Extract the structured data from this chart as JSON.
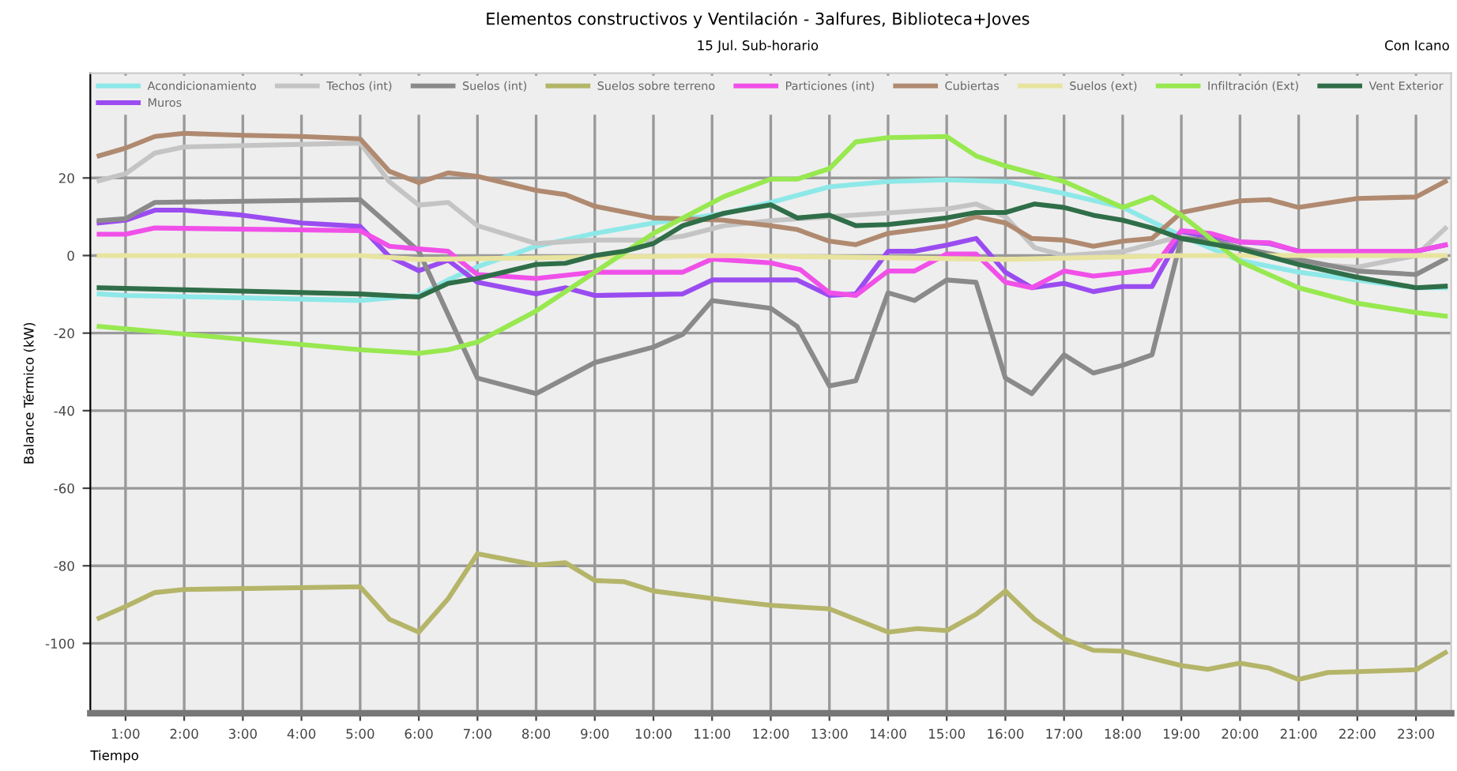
{
  "chart_data": {
    "type": "line",
    "title": "Elementos constructivos y Ventilación - 3alfures, Biblioteca+Joves",
    "subtitle": "15 Jul. Sub-horario",
    "annotations": [
      "Con Icano"
    ],
    "xlabel": "Tiempo",
    "ylabel": "Balance Térmico (kW)",
    "xlim": [
      0.4,
      23.6
    ],
    "xticks": [
      {
        "value": 1,
        "label": "1:00"
      },
      {
        "value": 2,
        "label": "2:00"
      },
      {
        "value": 3,
        "label": "3:00"
      },
      {
        "value": 4,
        "label": "4:00"
      },
      {
        "value": 5,
        "label": "5:00"
      },
      {
        "value": 6,
        "label": "6:00"
      },
      {
        "value": 7,
        "label": "7:00"
      },
      {
        "value": 8,
        "label": "8:00"
      },
      {
        "value": 9,
        "label": "9:00"
      },
      {
        "value": 10,
        "label": "10:00"
      },
      {
        "value": 11,
        "label": "11:00"
      },
      {
        "value": 12,
        "label": "12:00"
      },
      {
        "value": 13,
        "label": "13:00"
      },
      {
        "value": 14,
        "label": "14:00"
      },
      {
        "value": 15,
        "label": "15:00"
      },
      {
        "value": 16,
        "label": "16:00"
      },
      {
        "value": 17,
        "label": "17:00"
      },
      {
        "value": 18,
        "label": "18:00"
      },
      {
        "value": 19,
        "label": "19:00"
      },
      {
        "value": 20,
        "label": "20:00"
      },
      {
        "value": 21,
        "label": "21:00"
      },
      {
        "value": 22,
        "label": "22:00"
      },
      {
        "value": 23,
        "label": "23:00"
      }
    ],
    "ylim": [
      -118,
      47
    ],
    "yticks": [
      20,
      0,
      -20,
      -40,
      -60,
      -80,
      -100
    ],
    "grid": true,
    "legend": "top",
    "marker": "none",
    "line_style": "solid",
    "series": [
      {
        "name": "Acondicionamiento",
        "color": "#8ee8e8",
        "x": [
          0.55,
          1,
          3,
          5,
          6,
          6.5,
          7,
          8,
          9,
          10,
          11.2,
          12,
          13,
          14,
          15,
          16,
          17,
          18,
          19,
          20,
          21,
          22,
          23,
          23.5
        ],
        "values": [
          -9.9,
          -10.3,
          -10.9,
          -11.6,
          -10.3,
          -6.3,
          -2.9,
          2.4,
          5.7,
          8.4,
          10.8,
          13.7,
          17.7,
          19.1,
          19.5,
          19.1,
          16,
          12.4,
          5.1,
          -1.3,
          -4.3,
          -6.3,
          -8.3,
          -8.3
        ]
      },
      {
        "name": "Muros",
        "color": "#9a4cf0",
        "x": [
          0.55,
          1,
          1.5,
          2,
          3,
          4,
          5,
          5.5,
          6,
          6.5,
          7,
          8,
          8.5,
          9,
          10.5,
          11,
          12,
          12.45,
          13,
          13.45,
          14,
          14.45,
          15,
          15.5,
          16,
          16.45,
          17,
          17.5,
          18,
          18.5,
          19,
          19.5,
          20,
          20.5,
          21,
          23,
          23.5
        ],
        "values": [
          8.4,
          9.1,
          11.7,
          11.7,
          10.4,
          8.4,
          7.5,
          -0.3,
          -3.9,
          -1.2,
          -6.9,
          -9.9,
          -8.3,
          -10.3,
          -9.9,
          -6.3,
          -6.3,
          -6.3,
          -10.3,
          -9.9,
          1.1,
          1.1,
          2.7,
          4.4,
          -4.3,
          -8.3,
          -7.2,
          -9.3,
          -8,
          -8,
          5.7,
          5.1,
          3.5,
          3.1,
          1.1,
          1.1,
          2.7
        ]
      },
      {
        "name": "Techos (int)",
        "color": "#c4c4c4",
        "x": [
          0.55,
          1,
          1.5,
          2,
          5,
          5.5,
          6,
          6.5,
          7,
          8,
          9,
          10,
          10.5,
          11.2,
          12,
          13,
          14,
          15,
          15.5,
          16,
          16.5,
          17,
          18,
          19,
          20,
          21,
          22,
          23,
          23.5
        ],
        "values": [
          19.3,
          21.1,
          26.4,
          28,
          29,
          19,
          13,
          13.7,
          7.7,
          3.1,
          4,
          4,
          5,
          7.7,
          9,
          10,
          11,
          12,
          13.3,
          10,
          2,
          0,
          1,
          5,
          2,
          -2,
          -3,
          0,
          7
        ]
      },
      {
        "name": "Suelos (int)",
        "color": "#8a8a8a",
        "x": [
          0.55,
          1,
          1.5,
          5,
          6,
          7,
          8,
          9,
          10,
          10.5,
          11,
          12,
          12.45,
          13,
          13.45,
          14,
          14.45,
          15,
          15.5,
          16,
          16.45,
          17,
          17.5,
          18,
          18.5,
          19,
          19.5,
          20,
          21,
          22,
          23,
          23.5
        ],
        "values": [
          9,
          9.5,
          13.7,
          14.4,
          1.1,
          -31.6,
          -35.6,
          -27.6,
          -23.6,
          -20.3,
          -11.6,
          -13.6,
          -18.3,
          -33.6,
          -32.3,
          -9.6,
          -11.6,
          -6.3,
          -6.9,
          -31.6,
          -35.6,
          -25.6,
          -30.3,
          -28.3,
          -25.6,
          4.4,
          4,
          2,
          -1,
          -4,
          -4.9,
          -0.9
        ]
      },
      {
        "name": "Suelos sobre terreno",
        "color": "#b5b56a",
        "x": [
          0.55,
          1,
          1.5,
          2,
          5,
          5.5,
          6,
          6.5,
          7,
          8,
          8.5,
          9,
          9.5,
          10,
          11.2,
          12,
          13,
          14,
          14.5,
          15,
          15.5,
          16,
          16.5,
          17,
          17.5,
          18,
          19,
          19.45,
          20,
          20.5,
          21,
          21.5,
          22,
          23,
          23.5
        ],
        "values": [
          -93.5,
          -90.5,
          -86.9,
          -86.1,
          -85.4,
          -93.8,
          -97.1,
          -88.5,
          -76.9,
          -79.8,
          -79.2,
          -83.8,
          -84.1,
          -86.5,
          -88.8,
          -90.2,
          -91.1,
          -97.1,
          -96.2,
          -96.7,
          -92.5,
          -86.5,
          -93.8,
          -98.8,
          -101.8,
          -102,
          -105.7,
          -106.7,
          -105.1,
          -106.4,
          -109.3,
          -107.5,
          -107.3,
          -106.8,
          -102.4
        ]
      },
      {
        "name": "Particiones (int)",
        "color": "#f050e8",
        "x": [
          0.55,
          1,
          1.5,
          5,
          5.5,
          6,
          6.5,
          7,
          8,
          9,
          10.5,
          11,
          12,
          12.5,
          13,
          13.45,
          14,
          14.45,
          15,
          15.5,
          16,
          16.45,
          17,
          17.5,
          18,
          18.5,
          19,
          19.5,
          20,
          20.5,
          21,
          23,
          23.5
        ],
        "values": [
          5.5,
          5.5,
          7.1,
          6.4,
          2.4,
          1.7,
          1.1,
          -4.9,
          -5.9,
          -4.3,
          -4.3,
          -0.9,
          -1.9,
          -3.6,
          -9.6,
          -10.3,
          -4,
          -4,
          0.4,
          0.4,
          -6.9,
          -8.3,
          -4,
          -5.3,
          -4.5,
          -3.6,
          6.4,
          5.7,
          3.5,
          3.3,
          1.1,
          1.1,
          2.7
        ]
      },
      {
        "name": "Cubiertas",
        "color": "#b08a70",
        "x": [
          0.55,
          1,
          1.5,
          2,
          3,
          4,
          5,
          5.5,
          6,
          6.5,
          7,
          8,
          8.5,
          9,
          10,
          11.2,
          12,
          12.45,
          13,
          13.45,
          14,
          15,
          15.5,
          16,
          16.45,
          17,
          17.5,
          18,
          18.5,
          19,
          20,
          20.5,
          21,
          22,
          23,
          23.5
        ],
        "values": [
          25.7,
          27.7,
          30.7,
          31.5,
          31,
          30.7,
          30.1,
          21.7,
          18.8,
          21.3,
          20.4,
          16.8,
          15.7,
          12.7,
          9.7,
          9.1,
          7.7,
          6.7,
          3.7,
          2.8,
          5.7,
          7.7,
          10,
          8.4,
          4.4,
          4,
          2.4,
          3.7,
          4.4,
          11.1,
          14.1,
          14.4,
          12.4,
          14.7,
          15.1,
          19.1
        ]
      },
      {
        "name": "Suelos (ext)",
        "color": "#e8e4a0",
        "x": [
          0.55,
          5,
          6,
          11.2,
          16,
          19,
          23.5
        ],
        "values": [
          0,
          0,
          -1,
          0,
          -1,
          0,
          0
        ]
      },
      {
        "name": "Infiltración (Ext)",
        "color": "#98e850",
        "x": [
          0.55,
          3,
          5,
          6,
          6.5,
          7,
          8,
          9,
          10,
          11.2,
          12,
          12.45,
          13,
          13.45,
          14,
          15,
          15.5,
          16,
          17,
          18,
          18.5,
          19,
          20,
          21,
          22,
          23,
          23.5
        ],
        "values": [
          -18.3,
          -21.6,
          -24.3,
          -25.2,
          -24.3,
          -22.3,
          -14.3,
          -4.3,
          5.7,
          15.2,
          19.7,
          19.7,
          22.4,
          29.3,
          30.4,
          30.7,
          25.7,
          23.1,
          19.1,
          12.4,
          15.1,
          10.4,
          -1.6,
          -8.3,
          -12.3,
          -14.7,
          -15.6
        ]
      },
      {
        "name": "Vent Exterior",
        "color": "#2f6e48",
        "x": [
          0.55,
          5,
          6,
          6.5,
          7,
          8,
          8.5,
          9,
          9.5,
          10,
          10.5,
          11.2,
          12,
          12.45,
          13,
          13.45,
          14,
          15,
          15.5,
          16,
          16.5,
          17,
          17.5,
          18,
          18.5,
          19,
          20,
          21,
          22,
          23,
          23.5
        ],
        "values": [
          -8.3,
          -9.9,
          -10.7,
          -7.2,
          -5.9,
          -2.3,
          -2,
          0,
          1.1,
          3.1,
          7.7,
          10.9,
          13.1,
          9.7,
          10.4,
          7.7,
          8,
          9.7,
          11.1,
          11.1,
          13.3,
          12.4,
          10.4,
          9.1,
          7.1,
          4.4,
          1.7,
          -2.3,
          -5.6,
          -8.3,
          -7.9
        ]
      }
    ]
  }
}
